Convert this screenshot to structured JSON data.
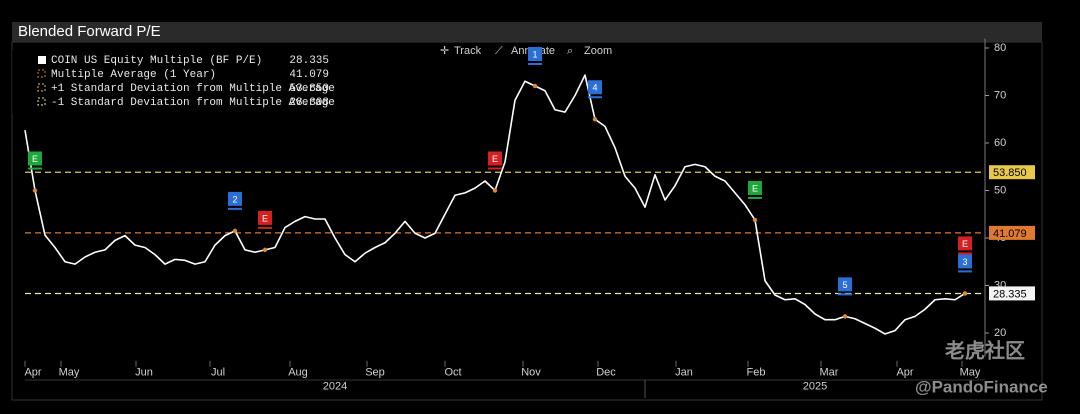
{
  "chart_data": {
    "type": "line",
    "title": "Blended Forward P/E",
    "series": [
      {
        "name": "COIN US Equity Multiple (BF P/E)",
        "color": "#ffffff",
        "values": [
          62.7,
          50,
          40.6,
          38,
          35,
          34.5,
          36,
          37,
          37.5,
          39.5,
          40.5,
          38.5,
          38,
          36.5,
          34.5,
          35.5,
          35.3,
          34.5,
          35,
          38.5,
          40.5,
          41.5,
          37.5,
          37,
          37.5,
          38,
          42.2,
          43.5,
          44.5,
          44,
          44,
          40,
          36.5,
          35,
          36.8,
          38,
          39,
          41,
          43.5,
          41,
          40,
          41,
          45,
          49,
          49.5,
          50.5,
          52,
          50,
          56,
          69,
          73,
          72,
          71,
          67,
          66.5,
          70,
          74.3,
          65,
          63.5,
          59,
          53,
          50.5,
          46.5,
          53.3,
          48,
          51,
          55,
          55.5,
          55,
          53,
          52,
          49.5,
          47,
          43.8,
          31,
          28,
          27,
          27.2,
          26,
          24,
          22.8,
          22.8,
          23.5,
          23,
          22,
          21,
          19.8,
          20.5,
          22.8,
          23.5,
          25,
          27,
          27.2,
          27,
          28.335
        ]
      }
    ],
    "reference_lines": [
      {
        "name": "Multiple Average (1 Year)",
        "value": 41.079,
        "color": "#e07a30"
      },
      {
        "name": "+1 Standard Deviation from Multiple Average",
        "value": 53.85,
        "value_label": "53.850",
        "color": "#e8c84a"
      },
      {
        "name": "-1 Standard Deviation from Multiple Average",
        "value": 28.308,
        "color": "#f0e6a0"
      }
    ],
    "xlim": [
      0,
      96
    ],
    "xticks": [
      {
        "value": 0.8,
        "label": "Apr"
      },
      {
        "value": 4.4,
        "label": "May"
      },
      {
        "value": 11.9,
        "label": "Jun"
      },
      {
        "value": 19.3,
        "label": "Jul"
      },
      {
        "value": 27.3,
        "label": "Aug"
      },
      {
        "value": 35,
        "label": "Sep"
      },
      {
        "value": 42.8,
        "label": "Oct"
      },
      {
        "value": 50.6,
        "label": "Nov"
      },
      {
        "value": 58.1,
        "label": "Dec"
      },
      {
        "value": 65.9,
        "label": "Jan"
      },
      {
        "value": 73.1,
        "label": "Feb"
      },
      {
        "value": 80.4,
        "label": "Mar"
      },
      {
        "value": 88,
        "label": "Apr"
      },
      {
        "value": 94.5,
        "label": "May"
      }
    ],
    "year_ticks": [
      {
        "value": 31,
        "label": "2024"
      },
      {
        "value": 79,
        "label": "2025"
      }
    ],
    "ylim": [
      15,
      82
    ],
    "yticks": [
      20,
      30,
      40,
      50,
      60,
      70,
      80
    ],
    "events": [
      {
        "label": "E",
        "color": "#1fa83a",
        "x": 1
      },
      {
        "label": "2",
        "color": "#2a6fd6",
        "x": 21
      },
      {
        "label": "E",
        "color": "#d42020",
        "x": 24
      },
      {
        "label": "E",
        "color": "#d42020",
        "x": 47
      },
      {
        "label": "1",
        "color": "#2a6fd6",
        "x": 51
      },
      {
        "label": "4",
        "color": "#2a6fd6",
        "x": 57
      },
      {
        "label": "E",
        "color": "#1fa83a",
        "x": 73
      },
      {
        "label": "5",
        "color": "#2a6fd6",
        "x": 82
      },
      {
        "label": "3",
        "color": "#2a6fd6",
        "x": 94
      },
      {
        "label": "E",
        "color": "#d42020",
        "x": 94
      }
    ]
  },
  "toolbar": [
    "Track",
    "Annotate",
    "Zoom"
  ],
  "watermark": [
    "老虎社区",
    "@PandoFinance"
  ]
}
